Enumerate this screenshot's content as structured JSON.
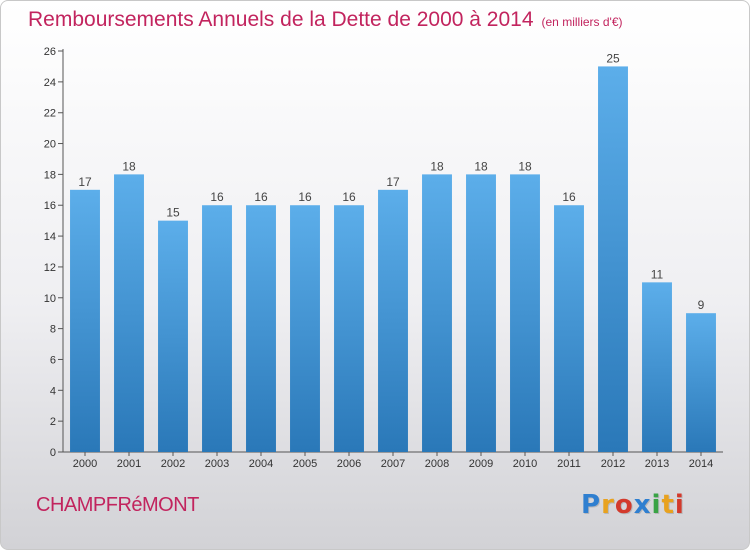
{
  "header": {
    "title": "Remboursements Annuels de la Dette de 2000 à 2014",
    "subtitle": "(en milliers d'€)"
  },
  "footer": {
    "commune": "CHAMPFRéMONT",
    "logo": "Proxiti"
  },
  "colors": {
    "title": "#c2245e",
    "bar_top": "#5caeea",
    "bar_bottom": "#2a78b8",
    "logo": [
      "#2f7fd0",
      "#e8a21f",
      "#d33a2c",
      "#2f7fd0",
      "#3aa345",
      "#e8a21f",
      "#d33a2c"
    ]
  },
  "chart_data": {
    "type": "bar",
    "categories": [
      "2000",
      "2001",
      "2002",
      "2003",
      "2004",
      "2005",
      "2006",
      "2007",
      "2008",
      "2009",
      "2010",
      "2011",
      "2012",
      "2013",
      "2014"
    ],
    "values": [
      17,
      18,
      15,
      16,
      16,
      16,
      16,
      17,
      18,
      18,
      18,
      16,
      25,
      11,
      9
    ],
    "data_labels": [
      "17",
      "18",
      "15",
      "16",
      "16",
      "16",
      "16",
      "17",
      "18",
      "18",
      "18",
      "16",
      "25",
      "11",
      "9"
    ],
    "ylim": [
      0,
      26
    ],
    "yticks": [
      0,
      2,
      4,
      6,
      8,
      10,
      12,
      14,
      16,
      18,
      20,
      22,
      24,
      26
    ],
    "grid": false,
    "legend": "none"
  }
}
